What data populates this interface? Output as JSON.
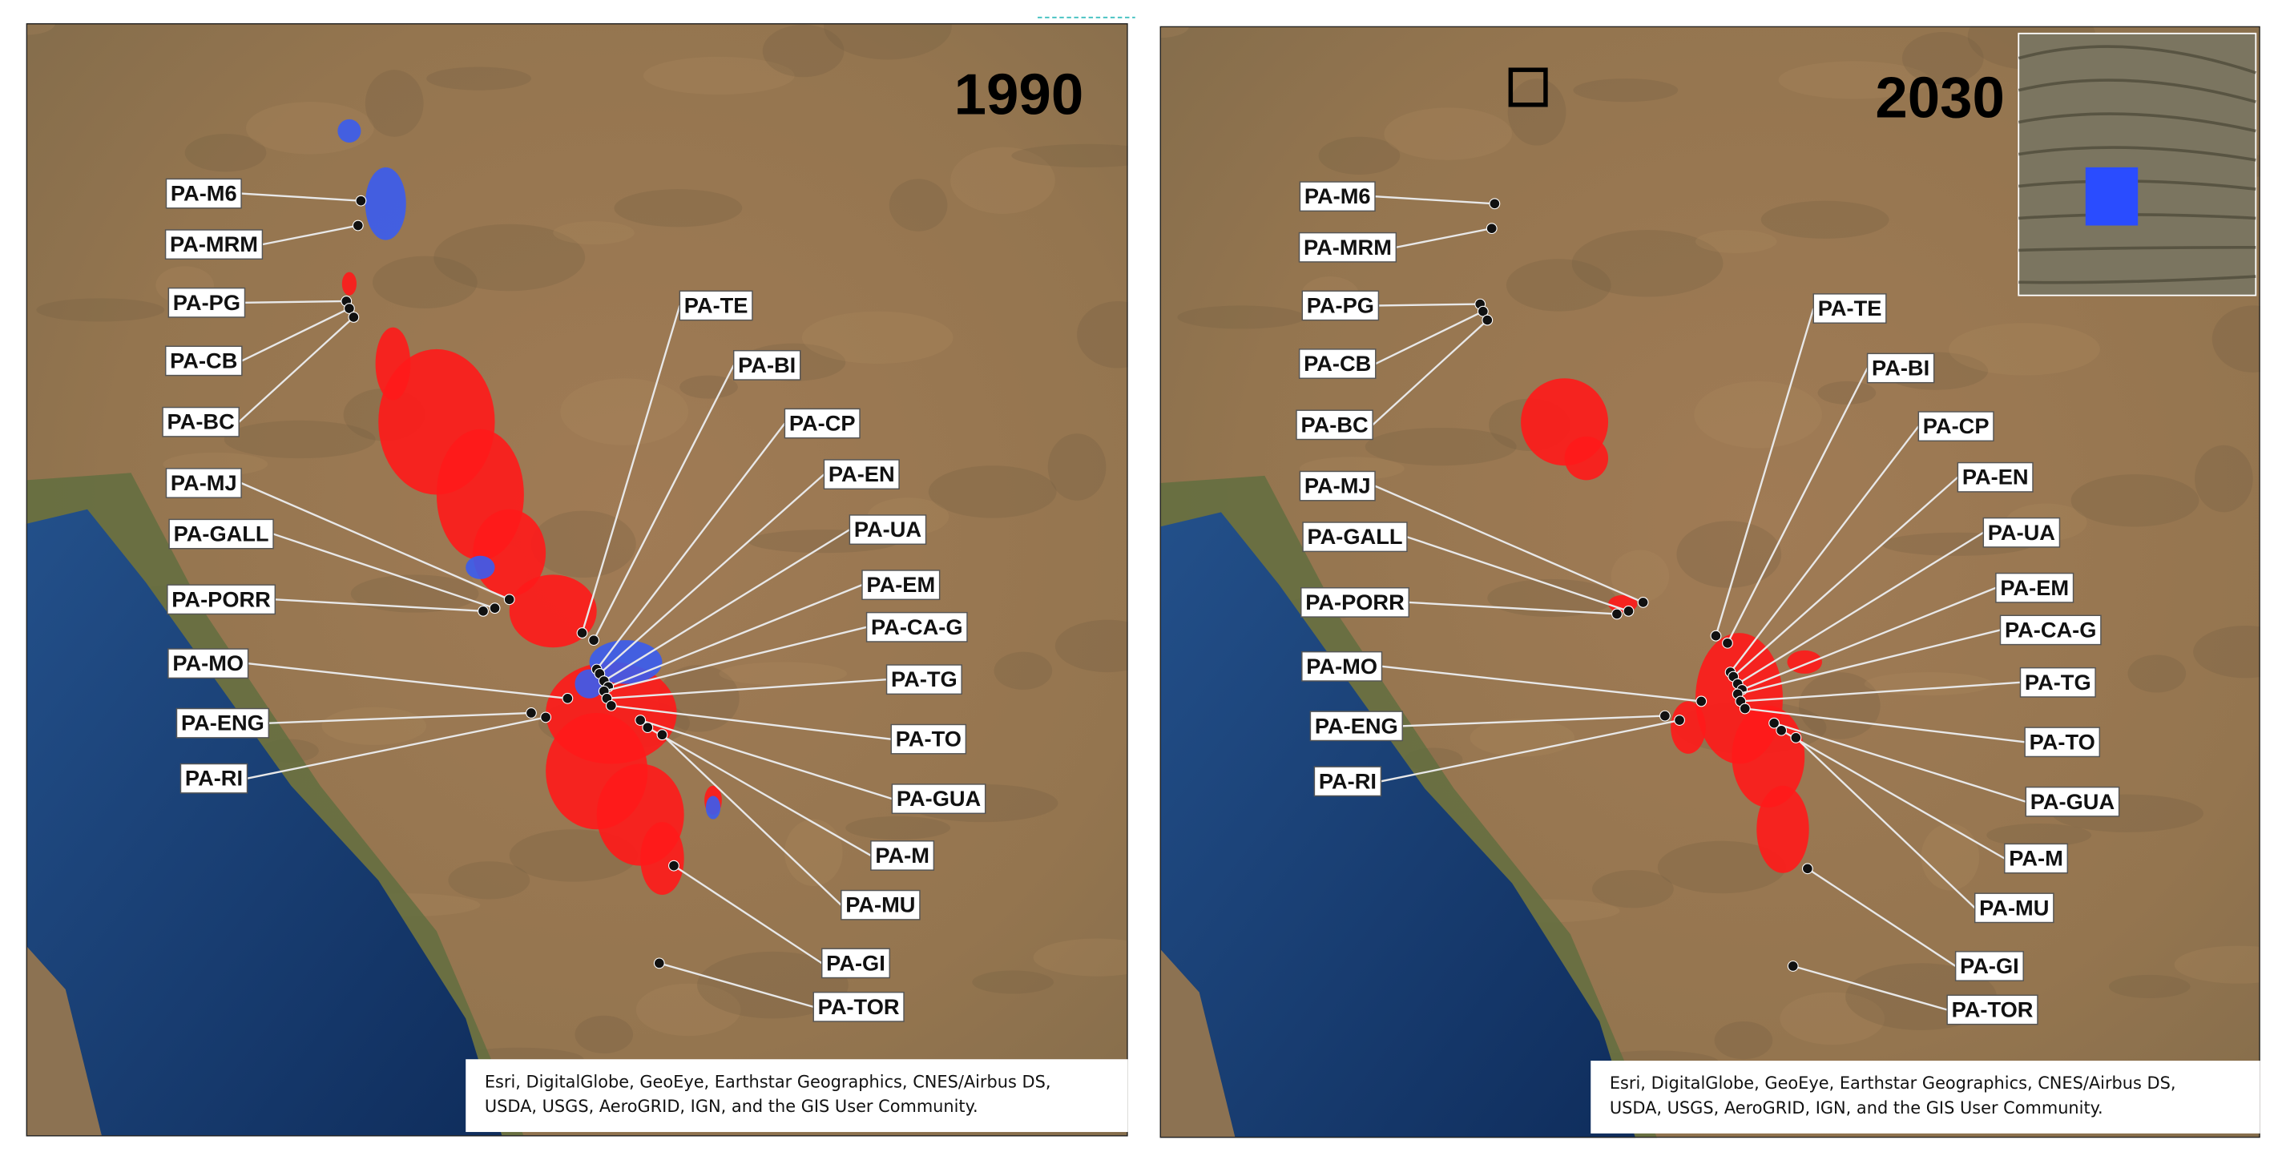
{
  "panels": [
    {
      "year": "1990",
      "labels": [
        "PA-M6",
        "PA-MRM",
        "PA-PG",
        "PA-CB",
        "PA-BC",
        "PA-MJ",
        "PA-GALL",
        "PA-PORR",
        "PA-MO",
        "PA-ENG",
        "PA-RI",
        "PA-TE",
        "PA-BI",
        "PA-CP",
        "PA-EN",
        "PA-UA",
        "PA-EM",
        "PA-CA-G",
        "PA-TG",
        "PA-TO",
        "PA-GUA",
        "PA-M",
        "PA-MU",
        "PA-GI",
        "PA-TOR"
      ],
      "attribution": [
        "Esri, DigitalGlobe, GeoEye, Earthstar Geographics, CNES/Airbus DS,",
        "USDA, USGS, AeroGRID, IGN, and the GIS User Community."
      ]
    },
    {
      "year": "2030",
      "labels": [
        "PA-M6",
        "PA-MRM",
        "PA-PG",
        "PA-CB",
        "PA-BC",
        "PA-MJ",
        "PA-GALL",
        "PA-PORR",
        "PA-MO",
        "PA-ENG",
        "PA-RI",
        "PA-TE",
        "PA-BI",
        "PA-CP",
        "PA-EN",
        "PA-UA",
        "PA-EM",
        "PA-CA-G",
        "PA-TG",
        "PA-TO",
        "PA-GUA",
        "PA-M",
        "PA-MU",
        "PA-GI",
        "PA-TOR"
      ],
      "attribution": [
        "Esri, DigitalGlobe, GeoEye, Earthstar Geographics, CNES/Airbus DS,",
        "USDA, USGS, AeroGRID, IGN, and the GIS User Community."
      ]
    }
  ]
}
